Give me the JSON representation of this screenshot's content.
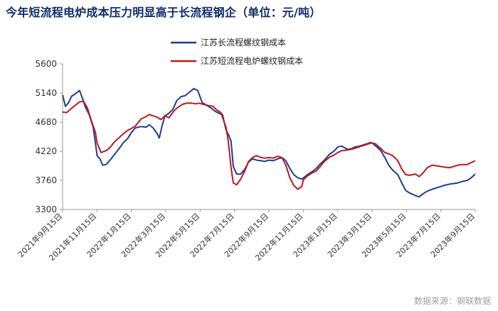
{
  "title": "今年短流程电炉成本压力明显高于长流程钢企（单位：元/吨）",
  "source": "数据来源：钢联数据",
  "chart_data": {
    "type": "line",
    "title": "今年短流程电炉成本压力明显高于长流程钢企（单位：元/吨）",
    "xlabel": "",
    "ylabel": "",
    "ylim": [
      3300,
      5600
    ],
    "yticks": [
      3300,
      3760,
      4220,
      4680,
      5140,
      5600
    ],
    "x_start": "2021-09-15",
    "x_end": "2023-09-15",
    "xticks": [
      "2021年9月15日",
      "2021年11月15日",
      "2022年1月15日",
      "2022年3月15日",
      "2022年5月15日",
      "2022年7月15日",
      "2022年9月15日",
      "2022年11月15日",
      "2023年1月15日",
      "2023年3月15日",
      "2023年5月15日",
      "2023年7月15日",
      "2023年9月15日"
    ],
    "grid": false,
    "legend_position": "top-center",
    "series": [
      {
        "name": "江苏长流程螺纹钢成本",
        "color": "#1f3e8f",
        "points": [
          [
            "2021-09-15",
            5110
          ],
          [
            "2021-09-20",
            4930
          ],
          [
            "2021-09-25",
            4980
          ],
          [
            "2021-10-01",
            5090
          ],
          [
            "2021-10-08",
            5130
          ],
          [
            "2021-10-15",
            5180
          ],
          [
            "2021-10-20",
            5060
          ],
          [
            "2021-10-25",
            4920
          ],
          [
            "2021-11-01",
            4800
          ],
          [
            "2021-11-08",
            4600
          ],
          [
            "2021-11-12",
            4350
          ],
          [
            "2021-11-15",
            4150
          ],
          [
            "2021-11-20",
            4100
          ],
          [
            "2021-11-25",
            4000
          ],
          [
            "2021-12-01",
            4010
          ],
          [
            "2021-12-08",
            4080
          ],
          [
            "2021-12-15",
            4160
          ],
          [
            "2021-12-22",
            4240
          ],
          [
            "2022-01-01",
            4360
          ],
          [
            "2022-01-08",
            4420
          ],
          [
            "2022-01-15",
            4520
          ],
          [
            "2022-01-22",
            4590
          ],
          [
            "2022-02-01",
            4610
          ],
          [
            "2022-02-10",
            4600
          ],
          [
            "2022-02-15",
            4640
          ],
          [
            "2022-02-22",
            4590
          ],
          [
            "2022-03-01",
            4500
          ],
          [
            "2022-03-05",
            4430
          ],
          [
            "2022-03-10",
            4620
          ],
          [
            "2022-03-15",
            4780
          ],
          [
            "2022-03-22",
            4820
          ],
          [
            "2022-03-29",
            4880
          ],
          [
            "2022-04-05",
            5020
          ],
          [
            "2022-04-12",
            5080
          ],
          [
            "2022-04-20",
            5100
          ],
          [
            "2022-04-27",
            5150
          ],
          [
            "2022-05-05",
            5210
          ],
          [
            "2022-05-12",
            5180
          ],
          [
            "2022-05-20",
            4990
          ],
          [
            "2022-05-27",
            4950
          ],
          [
            "2022-06-05",
            4900
          ],
          [
            "2022-06-12",
            4850
          ],
          [
            "2022-06-18",
            4820
          ],
          [
            "2022-06-25",
            4800
          ],
          [
            "2022-07-01",
            4560
          ],
          [
            "2022-07-05",
            4490
          ],
          [
            "2022-07-10",
            4380
          ],
          [
            "2022-07-14",
            3980
          ],
          [
            "2022-07-20",
            3860
          ],
          [
            "2022-07-27",
            3860
          ],
          [
            "2022-08-03",
            3930
          ],
          [
            "2022-08-10",
            4050
          ],
          [
            "2022-08-17",
            4100
          ],
          [
            "2022-08-24",
            4080
          ],
          [
            "2022-09-01",
            4070
          ],
          [
            "2022-09-08",
            4060
          ],
          [
            "2022-09-15",
            4080
          ],
          [
            "2022-09-22",
            4070
          ],
          [
            "2022-10-01",
            4100
          ],
          [
            "2022-10-08",
            4120
          ],
          [
            "2022-10-15",
            4070
          ],
          [
            "2022-10-22",
            3950
          ],
          [
            "2022-10-29",
            3850
          ],
          [
            "2022-11-05",
            3800
          ],
          [
            "2022-11-12",
            3780
          ],
          [
            "2022-11-15",
            3800
          ],
          [
            "2022-11-22",
            3850
          ],
          [
            "2022-12-01",
            3900
          ],
          [
            "2022-12-08",
            3950
          ],
          [
            "2022-12-15",
            4020
          ],
          [
            "2022-12-22",
            4080
          ],
          [
            "2023-01-01",
            4180
          ],
          [
            "2023-01-08",
            4220
          ],
          [
            "2023-01-15",
            4290
          ],
          [
            "2023-01-22",
            4300
          ],
          [
            "2023-02-01",
            4250
          ],
          [
            "2023-02-08",
            4260
          ],
          [
            "2023-02-15",
            4290
          ],
          [
            "2023-02-22",
            4300
          ],
          [
            "2023-03-01",
            4320
          ],
          [
            "2023-03-08",
            4340
          ],
          [
            "2023-03-15",
            4360
          ],
          [
            "2023-03-22",
            4310
          ],
          [
            "2023-04-01",
            4230
          ],
          [
            "2023-04-08",
            4120
          ],
          [
            "2023-04-15",
            4000
          ],
          [
            "2023-04-22",
            3920
          ],
          [
            "2023-05-01",
            3850
          ],
          [
            "2023-05-08",
            3720
          ],
          [
            "2023-05-15",
            3600
          ],
          [
            "2023-05-22",
            3560
          ],
          [
            "2023-06-01",
            3520
          ],
          [
            "2023-06-08",
            3500
          ],
          [
            "2023-06-15",
            3550
          ],
          [
            "2023-06-22",
            3590
          ],
          [
            "2023-07-01",
            3620
          ],
          [
            "2023-07-08",
            3640
          ],
          [
            "2023-07-15",
            3660
          ],
          [
            "2023-07-22",
            3680
          ],
          [
            "2023-08-01",
            3700
          ],
          [
            "2023-08-08",
            3710
          ],
          [
            "2023-08-15",
            3720
          ],
          [
            "2023-08-22",
            3740
          ],
          [
            "2023-09-01",
            3760
          ],
          [
            "2023-09-08",
            3800
          ],
          [
            "2023-09-15",
            3860
          ]
        ]
      },
      {
        "name": "江苏短流程电炉螺纹钢成本",
        "color": "#c0161c",
        "points": [
          [
            "2021-09-15",
            4840
          ],
          [
            "2021-09-22",
            4830
          ],
          [
            "2021-10-01",
            4900
          ],
          [
            "2021-10-08",
            4950
          ],
          [
            "2021-10-15",
            5000
          ],
          [
            "2021-10-22",
            5010
          ],
          [
            "2021-10-29",
            4900
          ],
          [
            "2021-11-05",
            4700
          ],
          [
            "2021-11-12",
            4520
          ],
          [
            "2021-11-15",
            4350
          ],
          [
            "2021-11-22",
            4200
          ],
          [
            "2021-12-01",
            4230
          ],
          [
            "2021-12-08",
            4280
          ],
          [
            "2021-12-15",
            4360
          ],
          [
            "2021-12-22",
            4420
          ],
          [
            "2022-01-01",
            4500
          ],
          [
            "2022-01-08",
            4550
          ],
          [
            "2022-01-15",
            4580
          ],
          [
            "2022-01-22",
            4620
          ],
          [
            "2022-02-01",
            4730
          ],
          [
            "2022-02-08",
            4760
          ],
          [
            "2022-02-15",
            4800
          ],
          [
            "2022-02-22",
            4780
          ],
          [
            "2022-03-01",
            4760
          ],
          [
            "2022-03-08",
            4720
          ],
          [
            "2022-03-15",
            4780
          ],
          [
            "2022-03-22",
            4750
          ],
          [
            "2022-04-01",
            4870
          ],
          [
            "2022-04-08",
            4920
          ],
          [
            "2022-04-15",
            4960
          ],
          [
            "2022-04-22",
            4980
          ],
          [
            "2022-05-01",
            4980
          ],
          [
            "2022-05-08",
            4970
          ],
          [
            "2022-05-15",
            4980
          ],
          [
            "2022-05-22",
            4960
          ],
          [
            "2022-06-01",
            4940
          ],
          [
            "2022-06-08",
            4930
          ],
          [
            "2022-06-15",
            4870
          ],
          [
            "2022-06-22",
            4830
          ],
          [
            "2022-07-01",
            4600
          ],
          [
            "2022-07-05",
            4390
          ],
          [
            "2022-07-10",
            3960
          ],
          [
            "2022-07-14",
            3720
          ],
          [
            "2022-07-20",
            3690
          ],
          [
            "2022-07-27",
            3780
          ],
          [
            "2022-08-03",
            3900
          ],
          [
            "2022-08-10",
            4060
          ],
          [
            "2022-08-17",
            4120
          ],
          [
            "2022-08-24",
            4150
          ],
          [
            "2022-09-01",
            4120
          ],
          [
            "2022-09-08",
            4110
          ],
          [
            "2022-09-15",
            4120
          ],
          [
            "2022-09-22",
            4110
          ],
          [
            "2022-10-01",
            4140
          ],
          [
            "2022-10-08",
            4120
          ],
          [
            "2022-10-15",
            4000
          ],
          [
            "2022-10-22",
            3800
          ],
          [
            "2022-10-29",
            3680
          ],
          [
            "2022-11-05",
            3620
          ],
          [
            "2022-11-12",
            3660
          ],
          [
            "2022-11-15",
            3770
          ],
          [
            "2022-11-22",
            3830
          ],
          [
            "2022-12-01",
            3880
          ],
          [
            "2022-12-08",
            3910
          ],
          [
            "2022-12-15",
            3980
          ],
          [
            "2022-12-22",
            4060
          ],
          [
            "2023-01-01",
            4130
          ],
          [
            "2023-01-08",
            4160
          ],
          [
            "2023-01-15",
            4200
          ],
          [
            "2023-01-22",
            4230
          ],
          [
            "2023-02-01",
            4240
          ],
          [
            "2023-02-08",
            4250
          ],
          [
            "2023-02-15",
            4270
          ],
          [
            "2023-02-22",
            4290
          ],
          [
            "2023-03-01",
            4310
          ],
          [
            "2023-03-08",
            4330
          ],
          [
            "2023-03-15",
            4350
          ],
          [
            "2023-03-22",
            4340
          ],
          [
            "2023-04-01",
            4260
          ],
          [
            "2023-04-08",
            4200
          ],
          [
            "2023-04-15",
            4180
          ],
          [
            "2023-04-22",
            4150
          ],
          [
            "2023-05-01",
            4070
          ],
          [
            "2023-05-08",
            3940
          ],
          [
            "2023-05-15",
            3850
          ],
          [
            "2023-05-22",
            3840
          ],
          [
            "2023-06-01",
            3860
          ],
          [
            "2023-06-08",
            3820
          ],
          [
            "2023-06-15",
            3880
          ],
          [
            "2023-06-22",
            3960
          ],
          [
            "2023-07-01",
            4000
          ],
          [
            "2023-07-08",
            3990
          ],
          [
            "2023-07-15",
            3980
          ],
          [
            "2023-07-22",
            3970
          ],
          [
            "2023-08-01",
            3960
          ],
          [
            "2023-08-08",
            3980
          ],
          [
            "2023-08-15",
            4000
          ],
          [
            "2023-08-22",
            4010
          ],
          [
            "2023-09-01",
            4010
          ],
          [
            "2023-09-08",
            4040
          ],
          [
            "2023-09-15",
            4070
          ]
        ]
      }
    ]
  }
}
